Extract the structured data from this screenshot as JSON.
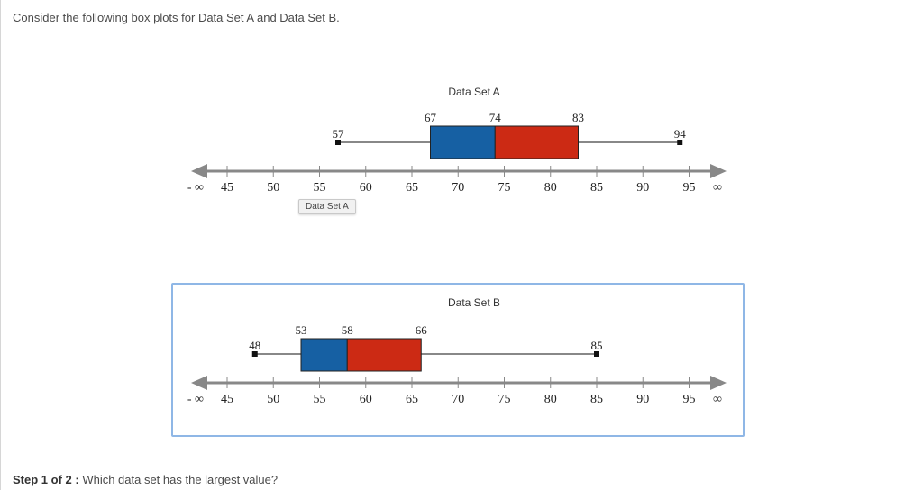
{
  "question": "Consider the following box plots for Data Set A and Data Set B.",
  "step": {
    "prefix": "Step 1 of 2 :",
    "text": "Which data set has the largest value?"
  },
  "tooltip": "Data Set A",
  "colors": {
    "box_left": "#1660a3",
    "box_right": "#cc2a14",
    "axis": "#888888",
    "highlight": "#8fb7e6"
  },
  "chart_data": [
    {
      "type": "boxplot",
      "title": "Data Set A",
      "min": 57,
      "q1": 67,
      "median": 74,
      "q3": 83,
      "max": 94,
      "axis": {
        "ticks": [
          45,
          50,
          55,
          60,
          65,
          70,
          75,
          80,
          85,
          90,
          95
        ],
        "left_label": "- ∞",
        "right_label": "∞",
        "xlim": [
          45,
          95
        ]
      }
    },
    {
      "type": "boxplot",
      "title": "Data Set B",
      "min": 48,
      "q1": 53,
      "median": 58,
      "q3": 66,
      "max": 85,
      "axis": {
        "ticks": [
          45,
          50,
          55,
          60,
          65,
          70,
          75,
          80,
          85,
          90,
          95
        ],
        "left_label": "- ∞",
        "right_label": "∞",
        "xlim": [
          45,
          95
        ]
      }
    }
  ]
}
